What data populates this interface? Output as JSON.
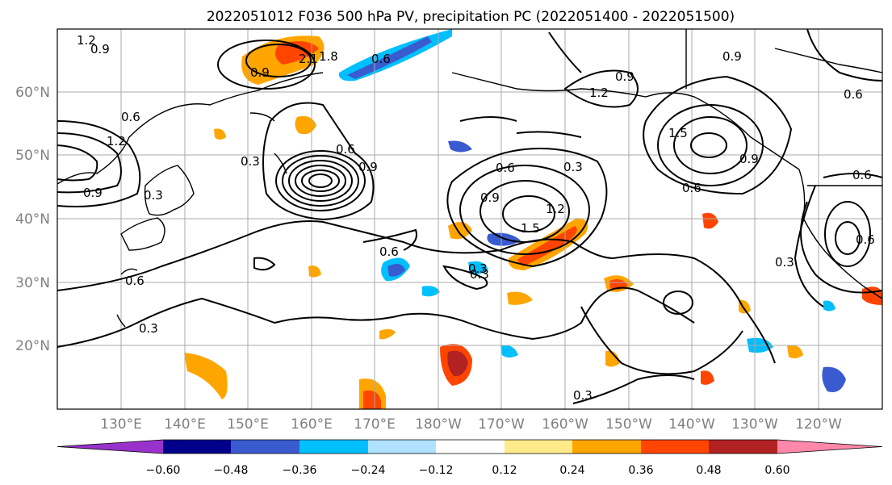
{
  "title": "2022051012 F036 500 hPa PV, precipitation PC (2022051400 - 2022051500)",
  "map": {
    "lat_labels": [
      "60°N",
      "50°N",
      "40°N",
      "30°N",
      "20°N"
    ],
    "lon_labels": [
      "130°E",
      "140°E",
      "150°E",
      "160°E",
      "170°E",
      "180°W",
      "170°W",
      "160°W",
      "150°W",
      "140°W",
      "130°W",
      "120°W"
    ],
    "contour_labels": [
      "1.2",
      "0.9",
      "0.9",
      "2.1",
      "1.8",
      "0.6",
      "0.9",
      "1.2",
      "0.9",
      "0.6",
      "0.6",
      "1.2",
      "0.9",
      "0.3",
      "0.6",
      "0.9",
      "1.5",
      "0.6",
      "0.6",
      "0.3",
      "0.9",
      "1.2",
      "1.5",
      "0.3",
      "0.6",
      "0.3",
      "0.6",
      "0.3",
      "0.9",
      "0.6",
      "0.3",
      "0.6",
      "0.3",
      "0.3"
    ]
  },
  "colorbar": {
    "ticks": [
      "−0.60",
      "−0.48",
      "−0.36",
      "−0.24",
      "−0.12",
      "0.12",
      "0.24",
      "0.36",
      "0.48",
      "0.60"
    ],
    "colors": [
      "#9932CC",
      "#00008B",
      "#3A5BD0",
      "#00BFFF",
      "#B0E2FF",
      "#FFFFFF",
      "#FFEB8A",
      "#FFA500",
      "#FF4500",
      "#B22222",
      "#FF88AA"
    ]
  }
}
